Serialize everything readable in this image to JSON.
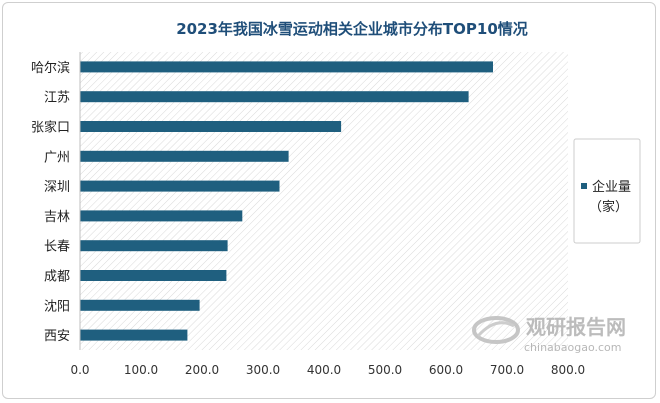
{
  "chart_data": {
    "type": "bar",
    "orientation": "horizontal",
    "title": "2023年我国冰雪运动相关企业城市分布TOP10情况",
    "categories": [
      "哈尔滨",
      "江苏",
      "张家口",
      "广州",
      "深圳",
      "吉林",
      "长春",
      "成都",
      "沈阳",
      "西安"
    ],
    "series": [
      {
        "name": "企业量（家）",
        "name_lines": [
          "企业量",
          "（家）"
        ],
        "values": [
          677,
          637,
          428,
          342,
          327,
          266,
          242,
          240,
          196,
          176
        ]
      }
    ],
    "xlim": [
      0,
      800
    ],
    "xticks": [
      "0.0",
      "100.0",
      "200.0",
      "300.0",
      "400.0",
      "500.0",
      "600.0",
      "700.0",
      "800.0"
    ],
    "grid": false,
    "legend_position": "right",
    "bar_color": "#1f5f7f"
  },
  "watermark": {
    "text_cn": "观研报告网",
    "text_en": "chinabaogao.com"
  }
}
